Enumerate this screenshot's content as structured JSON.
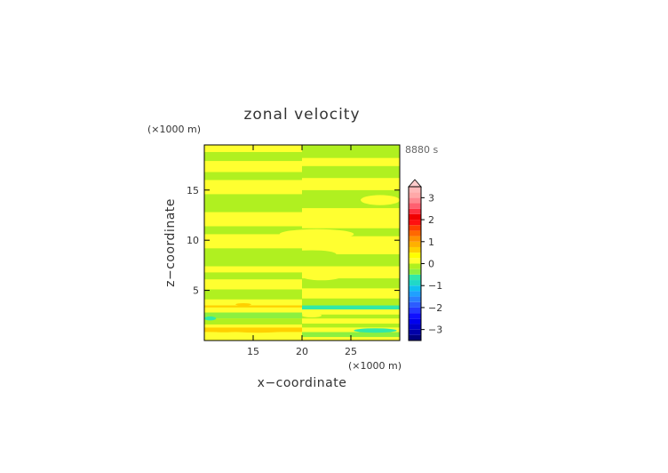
{
  "chart_data": {
    "type": "heatmap",
    "title": "zonal velocity",
    "xlabel": "x−coordinate",
    "ylabel": "z−coordinate",
    "x_unit": "(×1000 m)",
    "y_unit": "(×1000 m)",
    "time_label": "8880 s",
    "xlim": [
      10,
      30
    ],
    "ylim": [
      0,
      19.5
    ],
    "x_ticks": [
      15,
      20,
      25
    ],
    "y_ticks": [
      5,
      10,
      15
    ],
    "x_tick_labels": [
      "15",
      "20",
      "25"
    ],
    "y_tick_labels": [
      "5",
      "10",
      "15"
    ],
    "colorbar": {
      "levels": [
        -3.5,
        -3.25,
        -3,
        -2.75,
        -2.5,
        -2.25,
        -2,
        -1.75,
        -1.5,
        -1.25,
        -1,
        -0.75,
        -0.5,
        -0.25,
        0,
        0.25,
        0.5,
        0.75,
        1,
        1.25,
        1.5,
        1.75,
        2,
        2.25,
        2.5,
        2.75,
        3,
        3.25,
        3.5
      ],
      "colors": [
        "#000080",
        "#0000a8",
        "#0000cc",
        "#0000ee",
        "#1010ff",
        "#2438ff",
        "#2c5cff",
        "#2a80ff",
        "#20a0ff",
        "#10c0f0",
        "#20d8c8",
        "#30e8a8",
        "#8cf040",
        "#b0f020",
        "#ffff30",
        "#ffff00",
        "#ffd000",
        "#ffb000",
        "#ff9000",
        "#ff6800",
        "#ff4000",
        "#ff1010",
        "#f00000",
        "#ff3040",
        "#ff6070",
        "#ff8890",
        "#ffa8a8",
        "#ffb8b8"
      ],
      "tick_values": [
        -3,
        -2,
        -1,
        0,
        1,
        2,
        3
      ],
      "tick_labels": [
        "−3",
        "−2",
        "−1",
        "0",
        "1",
        "2",
        "3"
      ],
      "extend": "max"
    },
    "bands_left": [
      {
        "z": [
          0,
          0.35
        ],
        "value": 0.1
      },
      {
        "z": [
          0.35,
          0.85
        ],
        "value": 0.2
      },
      {
        "z": [
          0.85,
          1.3
        ],
        "value": 0.6
      },
      {
        "z": [
          1.3,
          1.6
        ],
        "value": 0.1
      },
      {
        "z": [
          1.6,
          2.2
        ],
        "value": -0.1
      },
      {
        "z": [
          2.2,
          2.8
        ],
        "value": -0.4
      },
      {
        "z": [
          2.8,
          3.3
        ],
        "value": 0.1
      },
      {
        "z": [
          3.3,
          3.5
        ],
        "value": 0.5
      },
      {
        "z": [
          3.5,
          4.1
        ],
        "value": 0.1
      },
      {
        "z": [
          4.1,
          5.1
        ],
        "value": -0.1
      },
      {
        "z": [
          5.1,
          6.1
        ],
        "value": 0.1
      },
      {
        "z": [
          6.1,
          6.8
        ],
        "value": -0.1
      },
      {
        "z": [
          6.8,
          7.4
        ],
        "value": 0.1
      },
      {
        "z": [
          7.4,
          9.2
        ],
        "value": -0.1
      },
      {
        "z": [
          9.2,
          10.6
        ],
        "value": 0.1
      },
      {
        "z": [
          10.6,
          11.4
        ],
        "value": -0.1
      },
      {
        "z": [
          11.4,
          12.8
        ],
        "value": 0.1
      },
      {
        "z": [
          12.8,
          14.6
        ],
        "value": -0.1
      },
      {
        "z": [
          14.6,
          16.0
        ],
        "value": 0.1
      },
      {
        "z": [
          16.0,
          16.8
        ],
        "value": -0.1
      },
      {
        "z": [
          16.8,
          17.9
        ],
        "value": 0.1
      },
      {
        "z": [
          17.9,
          18.8
        ],
        "value": -0.1
      },
      {
        "z": [
          18.8,
          19.5
        ],
        "value": 0.1
      }
    ],
    "bands_right": [
      {
        "z": [
          0,
          0.35
        ],
        "value": 0.1
      },
      {
        "z": [
          0.35,
          0.85
        ],
        "value": -0.4
      },
      {
        "z": [
          0.85,
          1.3
        ],
        "value": 0.1
      },
      {
        "z": [
          1.3,
          1.7
        ],
        "value": -0.1
      },
      {
        "z": [
          1.7,
          2.2
        ],
        "value": 0.1
      },
      {
        "z": [
          2.2,
          2.6
        ],
        "value": -0.1
      },
      {
        "z": [
          2.6,
          3.1
        ],
        "value": 0.1
      },
      {
        "z": [
          3.1,
          3.5
        ],
        "value": -0.6
      },
      {
        "z": [
          3.5,
          4.2
        ],
        "value": -0.1
      },
      {
        "z": [
          4.2,
          5.2
        ],
        "value": 0.1
      },
      {
        "z": [
          5.2,
          6.2
        ],
        "value": -0.1
      },
      {
        "z": [
          6.2,
          7.4
        ],
        "value": 0.1
      },
      {
        "z": [
          7.4,
          8.6
        ],
        "value": -0.1
      },
      {
        "z": [
          8.6,
          10.4
        ],
        "value": 0.1
      },
      {
        "z": [
          10.4,
          11.2
        ],
        "value": -0.1
      },
      {
        "z": [
          11.2,
          13.2
        ],
        "value": 0.1
      },
      {
        "z": [
          13.2,
          15.0
        ],
        "value": -0.1
      },
      {
        "z": [
          15.0,
          16.2
        ],
        "value": 0.1
      },
      {
        "z": [
          16.2,
          17.4
        ],
        "value": -0.1
      },
      {
        "z": [
          17.4,
          18.2
        ],
        "value": 0.1
      },
      {
        "z": [
          18.2,
          19.5
        ],
        "value": -0.1
      }
    ],
    "blobs": [
      {
        "center": [
          15.5,
          1.0
        ],
        "radius": [
          2.8,
          0.22
        ],
        "value": 0.6
      },
      {
        "center": [
          12.0,
          1.0
        ],
        "radius": [
          1.6,
          0.18
        ],
        "value": 0.6
      },
      {
        "center": [
          26.5,
          3.3
        ],
        "radius": [
          1.2,
          0.18
        ],
        "value": -0.6
      },
      {
        "center": [
          27.5,
          1.0
        ],
        "radius": [
          2.2,
          0.22
        ],
        "value": -0.6
      },
      {
        "center": [
          10.6,
          2.2
        ],
        "radius": [
          0.6,
          0.2
        ],
        "value": -0.6
      },
      {
        "center": [
          14.0,
          3.6
        ],
        "radius": [
          0.8,
          0.12
        ],
        "value": 0.5
      },
      {
        "center": [
          21.5,
          10.6
        ],
        "radius": [
          3.8,
          0.5
        ],
        "value": 0.1
      },
      {
        "center": [
          21.0,
          8.6
        ],
        "radius": [
          2.5,
          0.4
        ],
        "value": -0.1
      },
      {
        "center": [
          22.0,
          6.4
        ],
        "radius": [
          2.0,
          0.4
        ],
        "value": 0.1
      },
      {
        "center": [
          28.0,
          14.0
        ],
        "radius": [
          2.0,
          0.5
        ],
        "value": 0.1
      },
      {
        "center": [
          21.0,
          2.5
        ],
        "radius": [
          1.0,
          0.2
        ],
        "value": 0.1
      }
    ]
  }
}
